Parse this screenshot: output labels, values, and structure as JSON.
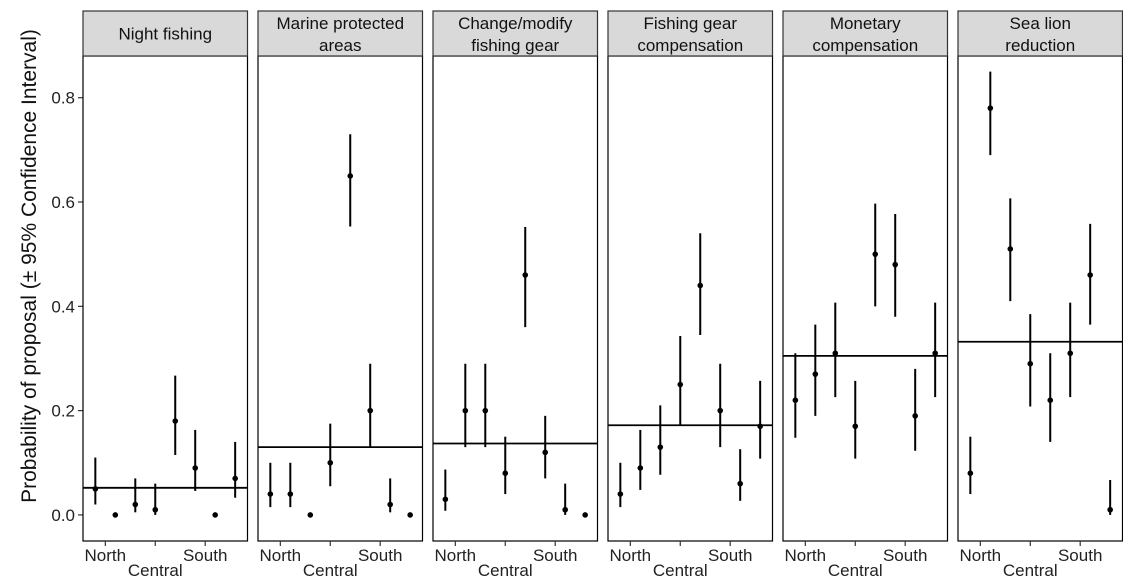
{
  "chart_data": {
    "type": "scatter",
    "ylabel": "Probability of proposal (± 95% Confidence Interval)",
    "xlabel": "",
    "ylim": [
      -0.05,
      0.88
    ],
    "yticks": [
      0.0,
      0.2,
      0.4,
      0.6,
      0.8
    ],
    "ytick_labels": [
      "0.0",
      "0.2",
      "0.4",
      "0.6",
      "0.8"
    ],
    "x_tick_labels": [
      {
        "label": "North",
        "x": 1.5
      },
      {
        "label": "Central",
        "x": 4
      },
      {
        "label": "South",
        "x": 6.5
      }
    ],
    "grid": false,
    "colors": {
      "strip_fill": "#d9d9d9",
      "mark": "#000000",
      "frame": "#000000"
    },
    "panels": [
      {
        "title_lines": [
          "Night fishing"
        ],
        "mean": 0.052,
        "points": [
          {
            "x": 1,
            "y": 0.05,
            "lo": 0.02,
            "hi": 0.11
          },
          {
            "x": 2,
            "y": 0.0,
            "lo": null,
            "hi": null
          },
          {
            "x": 3,
            "y": 0.02,
            "lo": 0.005,
            "hi": 0.07
          },
          {
            "x": 4,
            "y": 0.01,
            "lo": 0.0,
            "hi": 0.06
          },
          {
            "x": 5,
            "y": 0.18,
            "lo": 0.115,
            "hi": 0.267
          },
          {
            "x": 6,
            "y": 0.09,
            "lo": 0.046,
            "hi": 0.163
          },
          {
            "x": 7,
            "y": 0.0,
            "lo": null,
            "hi": null
          },
          {
            "x": 8,
            "y": 0.07,
            "lo": 0.033,
            "hi": 0.14
          }
        ]
      },
      {
        "title_lines": [
          "Marine protected",
          "areas"
        ],
        "mean": 0.13,
        "points": [
          {
            "x": 1,
            "y": 0.04,
            "lo": 0.015,
            "hi": 0.1
          },
          {
            "x": 2,
            "y": 0.04,
            "lo": 0.015,
            "hi": 0.1
          },
          {
            "x": 3,
            "y": 0.0,
            "lo": null,
            "hi": null
          },
          {
            "x": 4,
            "y": 0.1,
            "lo": 0.055,
            "hi": 0.175
          },
          {
            "x": 5,
            "y": 0.65,
            "lo": 0.553,
            "hi": 0.73
          },
          {
            "x": 6,
            "y": 0.2,
            "lo": 0.13,
            "hi": 0.29
          },
          {
            "x": 7,
            "y": 0.02,
            "lo": 0.005,
            "hi": 0.07
          },
          {
            "x": 8,
            "y": 0.0,
            "lo": null,
            "hi": null
          }
        ]
      },
      {
        "title_lines": [
          "Change/modify",
          "fishing gear"
        ],
        "mean": 0.137,
        "points": [
          {
            "x": 1,
            "y": 0.03,
            "lo": 0.008,
            "hi": 0.087
          },
          {
            "x": 2,
            "y": 0.2,
            "lo": 0.13,
            "hi": 0.29
          },
          {
            "x": 3,
            "y": 0.2,
            "lo": 0.13,
            "hi": 0.29
          },
          {
            "x": 4,
            "y": 0.08,
            "lo": 0.04,
            "hi": 0.15
          },
          {
            "x": 5,
            "y": 0.46,
            "lo": 0.36,
            "hi": 0.552
          },
          {
            "x": 6,
            "y": 0.12,
            "lo": 0.07,
            "hi": 0.19
          },
          {
            "x": 7,
            "y": 0.01,
            "lo": 0.0,
            "hi": 0.06
          },
          {
            "x": 8,
            "y": 0.0,
            "lo": null,
            "hi": null
          }
        ]
      },
      {
        "title_lines": [
          "Fishing gear",
          "compensation"
        ],
        "mean": 0.172,
        "points": [
          {
            "x": 1,
            "y": 0.04,
            "lo": 0.015,
            "hi": 0.1
          },
          {
            "x": 2,
            "y": 0.09,
            "lo": 0.048,
            "hi": 0.163
          },
          {
            "x": 3,
            "y": 0.13,
            "lo": 0.077,
            "hi": 0.21
          },
          {
            "x": 4,
            "y": 0.25,
            "lo": 0.172,
            "hi": 0.343
          },
          {
            "x": 5,
            "y": 0.44,
            "lo": 0.345,
            "hi": 0.54
          },
          {
            "x": 6,
            "y": 0.2,
            "lo": 0.13,
            "hi": 0.29
          },
          {
            "x": 7,
            "y": 0.06,
            "lo": 0.027,
            "hi": 0.126
          },
          {
            "x": 8,
            "y": 0.17,
            "lo": 0.108,
            "hi": 0.257
          }
        ]
      },
      {
        "title_lines": [
          "Monetary",
          "compensation"
        ],
        "mean": 0.305,
        "points": [
          {
            "x": 1,
            "y": 0.22,
            "lo": 0.148,
            "hi": 0.31
          },
          {
            "x": 2,
            "y": 0.27,
            "lo": 0.19,
            "hi": 0.365
          },
          {
            "x": 3,
            "y": 0.31,
            "lo": 0.226,
            "hi": 0.407
          },
          {
            "x": 4,
            "y": 0.17,
            "lo": 0.108,
            "hi": 0.257
          },
          {
            "x": 5,
            "y": 0.5,
            "lo": 0.4,
            "hi": 0.597
          },
          {
            "x": 6,
            "y": 0.48,
            "lo": 0.38,
            "hi": 0.577
          },
          {
            "x": 7,
            "y": 0.19,
            "lo": 0.123,
            "hi": 0.28
          },
          {
            "x": 8,
            "y": 0.31,
            "lo": 0.226,
            "hi": 0.407
          }
        ]
      },
      {
        "title_lines": [
          "Sea lion",
          "reduction"
        ],
        "mean": 0.332,
        "points": [
          {
            "x": 1,
            "y": 0.08,
            "lo": 0.04,
            "hi": 0.15
          },
          {
            "x": 2,
            "y": 0.78,
            "lo": 0.69,
            "hi": 0.85
          },
          {
            "x": 3,
            "y": 0.51,
            "lo": 0.41,
            "hi": 0.607
          },
          {
            "x": 4,
            "y": 0.29,
            "lo": 0.208,
            "hi": 0.385
          },
          {
            "x": 5,
            "y": 0.22,
            "lo": 0.14,
            "hi": 0.31
          },
          {
            "x": 6,
            "y": 0.31,
            "lo": 0.226,
            "hi": 0.407
          },
          {
            "x": 7,
            "y": 0.46,
            "lo": 0.365,
            "hi": 0.558
          },
          {
            "x": 8,
            "y": 0.01,
            "lo": 0.0,
            "hi": 0.067
          }
        ]
      }
    ]
  }
}
